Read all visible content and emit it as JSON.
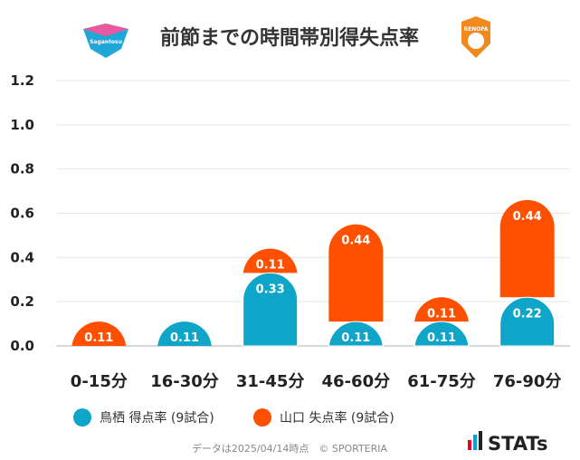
{
  "chart_data": {
    "type": "bar",
    "title": "前節までの時間帯別得失点率",
    "categories": [
      "0-15分",
      "16-30分",
      "31-45分",
      "46-60分",
      "61-75分",
      "76-90分"
    ],
    "series": [
      {
        "name": "鳥栖 得点率 (9試合)",
        "color": "#0ea5c8",
        "values": [
          0,
          0.11,
          0.33,
          0.11,
          0.11,
          0.22
        ],
        "labels": [
          "",
          "0.11",
          "0.33",
          "0.11",
          "0.11",
          "0.22"
        ]
      },
      {
        "name": "山口 失点率 (9試合)",
        "color": "#ff5000",
        "values": [
          0.11,
          0,
          0.11,
          0.44,
          0.11,
          0.44
        ],
        "labels": [
          "0.11",
          "",
          "0.11",
          "0.44",
          "0.11",
          "0.44"
        ]
      }
    ],
    "stacked": true,
    "ylim": [
      0,
      1.2
    ],
    "yticks": [
      "0.0",
      "0.2",
      "0.4",
      "0.6",
      "0.8",
      "1.0",
      "1.2"
    ],
    "grid": true,
    "legend": "bottom"
  },
  "logos": {
    "left": {
      "name": "sagan-tosu-logo-icon",
      "text": "Sagantosu",
      "colors": [
        "#1fa7d8",
        "#e85aa0"
      ]
    },
    "right": {
      "name": "renofa-yamaguchi-logo-icon",
      "text": "RENOFA",
      "color": "#f08a1e"
    }
  },
  "footer": "データは2025/04/14時点　© SPORTERIA",
  "brand": {
    "text": "STATs",
    "icon": "stats-bars-icon",
    "colors": [
      "#e4002b",
      "#00a0e9",
      "#222222"
    ]
  }
}
